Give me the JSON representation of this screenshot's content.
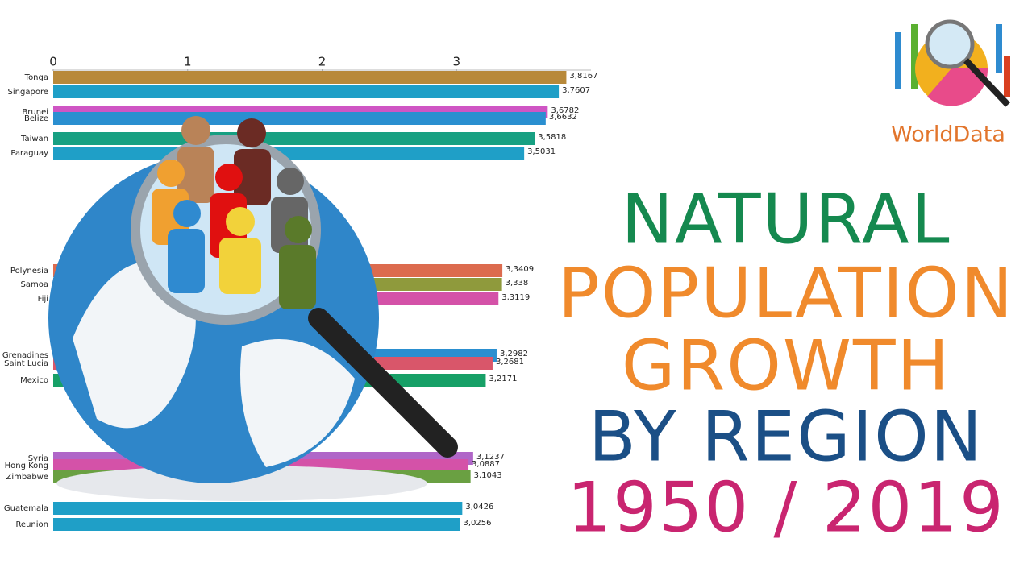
{
  "logo": "WorldData",
  "chart_data": {
    "type": "barh",
    "title": [
      "NATURAL",
      "POPULATION",
      "GROWTH",
      "BY REGION",
      "1950 / 2019"
    ],
    "title_colors": [
      "#15894f",
      "#f08a2c",
      "#f08a2c",
      "#1b4f86",
      "#c92570"
    ],
    "categories": [
      "Tonga",
      "Singapore",
      "Brunei",
      "Belize",
      "Taiwan",
      "Paraguay",
      "Polynesia",
      "Samoa",
      "Fiji",
      "Grenadines",
      "Saint Lucia",
      "Mexico",
      "Syria",
      "Hong Kong",
      "Zimbabwe",
      "Guatemala",
      "Reunion"
    ],
    "values": [
      3.8167,
      3.7607,
      3.6782,
      3.6632,
      3.5818,
      3.5031,
      3.3409,
      3.338,
      3.3119,
      3.2982,
      3.2681,
      3.2171,
      3.1237,
      3.0887,
      3.1043,
      3.0426,
      3.0256
    ],
    "value_labels": [
      "3,8167",
      "3,7607",
      "3,6782",
      "3,6632",
      "3,5818",
      "3,5031",
      "3,3409",
      "3,338",
      "3,3119",
      "3,2982",
      "3,2681",
      "3,2171",
      "3,1237",
      "3,0887",
      "3,1043",
      "3,0426",
      "3,0256"
    ],
    "colors": [
      "#b8893a",
      "#1f9fc7",
      "#cf55c4",
      "#2a8fd0",
      "#17a082",
      "#1f9fc7",
      "#dc6b4e",
      "#8f9a3c",
      "#d452a8",
      "#2a8fd0",
      "#d9566a",
      "#17a067",
      "#b066c8",
      "#d452a8",
      "#6aa042",
      "#1f9fc7",
      "#1f9fc7"
    ],
    "xlim": [
      0,
      4
    ],
    "xticks": [
      0,
      1,
      2,
      3
    ]
  }
}
